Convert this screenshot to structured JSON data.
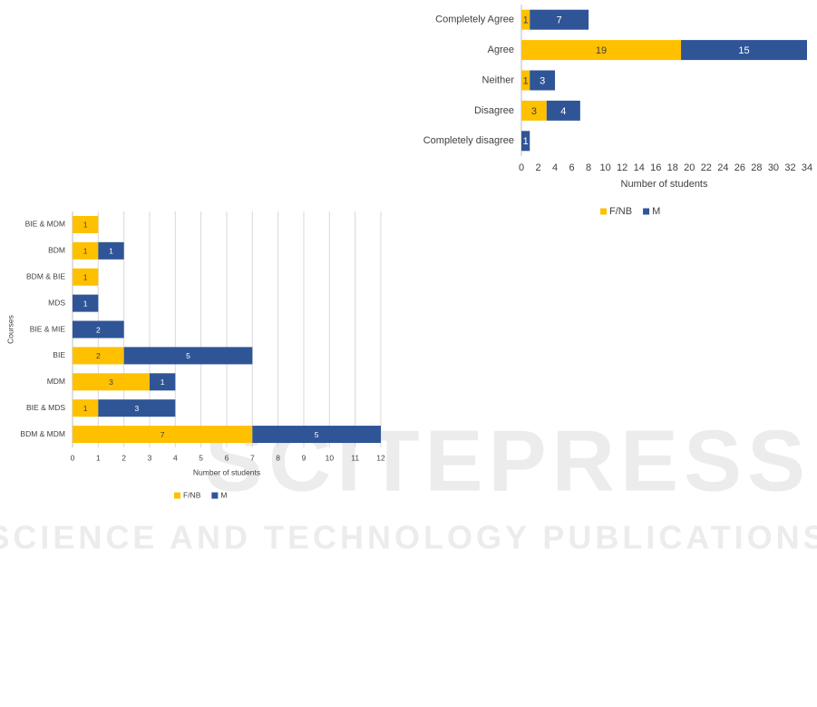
{
  "watermark": {
    "title": "SCITEPRESS",
    "subtitle": "SCIENCE AND TECHNOLOGY PUBLICATIONS"
  },
  "chart_data": [
    {
      "type": "stacked-barh",
      "categories": [
        "Completely Agree",
        "Agree",
        "Neither",
        "Disagree",
        "Completely disagree"
      ],
      "series": [
        {
          "name": "F/NB",
          "color": "#ffc000",
          "values": [
            1,
            19,
            1,
            3,
            null
          ]
        },
        {
          "name": "M",
          "color": "#2f5597",
          "values": [
            7,
            15,
            3,
            4,
            1
          ]
        }
      ],
      "xlabel": "Number of students",
      "xlim": [
        0,
        34
      ],
      "xticks": [
        0,
        2,
        4,
        6,
        8,
        10,
        12,
        14,
        16,
        18,
        20,
        22,
        24,
        26,
        28,
        30,
        32,
        34
      ],
      "grid": false,
      "legend": "bottom"
    },
    {
      "type": "stacked-barh",
      "categories": [
        "BIE & MDM",
        "BDM",
        "BDM & BIE",
        "MDS",
        "BIE & MIE",
        "BIE",
        "MDM",
        "BIE & MDS",
        "BDM & MDM"
      ],
      "series": [
        {
          "name": "F/NB",
          "color": "#ffc000",
          "values": [
            1,
            1,
            1,
            null,
            null,
            2,
            3,
            1,
            7
          ]
        },
        {
          "name": "M",
          "color": "#2f5597",
          "values": [
            null,
            1,
            null,
            1,
            2,
            5,
            1,
            3,
            5
          ]
        }
      ],
      "xlabel": "Number of students",
      "ylabel": "Courses",
      "xlim": [
        0,
        12
      ],
      "xticks": [
        0,
        1,
        2,
        3,
        4,
        5,
        6,
        7,
        8,
        9,
        10,
        11,
        12
      ],
      "grid": true,
      "legend": "bottom"
    }
  ]
}
